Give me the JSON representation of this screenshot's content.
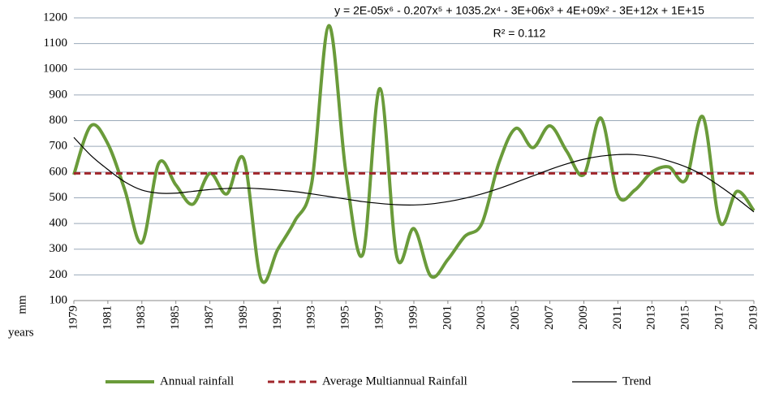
{
  "chart_data": {
    "type": "line",
    "annotations": [
      "y = 2E-05x⁶ - 0.207x⁵ + 1035.2x⁴ - 3E+06x³ + 4E+09x² - 3E+12x + 1E+15",
      "R² = 0.112"
    ],
    "xlabel": "years",
    "ylabel": "mm",
    "x": [
      1979,
      1980,
      1981,
      1982,
      1983,
      1984,
      1985,
      1986,
      1987,
      1988,
      1989,
      1990,
      1991,
      1992,
      1993,
      1994,
      1995,
      1996,
      1997,
      1998,
      1999,
      2000,
      2001,
      2002,
      2003,
      2004,
      2005,
      2006,
      2007,
      2008,
      2009,
      2010,
      2011,
      2012,
      2013,
      2014,
      2015,
      2016,
      2017,
      2018,
      2019
    ],
    "xlim": [
      1979,
      2019
    ],
    "xticks": [
      1979,
      1981,
      1983,
      1985,
      1987,
      1989,
      1991,
      1993,
      1995,
      1997,
      1999,
      2001,
      2003,
      2005,
      2007,
      2009,
      2011,
      2013,
      2015,
      2017,
      2019
    ],
    "ylim": [
      100,
      1200
    ],
    "yticks": [
      100,
      200,
      300,
      400,
      500,
      600,
      700,
      800,
      900,
      1000,
      1100,
      1200
    ],
    "grid": true,
    "legend": "bottom",
    "series": [
      {
        "name": "Annual rainfall",
        "color": "#6a9b3a",
        "style": "smooth",
        "values": [
          590,
          780,
          710,
          530,
          325,
          635,
          550,
          475,
          595,
          515,
          650,
          185,
          300,
          410,
          560,
          1170,
          600,
          280,
          925,
          270,
          380,
          195,
          260,
          350,
          400,
          635,
          770,
          695,
          780,
          680,
          590,
          810,
          510,
          530,
          600,
          620,
          570,
          815,
          405,
          525,
          450
        ]
      },
      {
        "name": "Average Multiannual Rainfall",
        "color": "#a0262b",
        "style": "dashed",
        "values": [
          595,
          595,
          595,
          595,
          595,
          595,
          595,
          595,
          595,
          595,
          595,
          595,
          595,
          595,
          595,
          595,
          595,
          595,
          595,
          595,
          595,
          595,
          595,
          595,
          595,
          595,
          595,
          595,
          595,
          595,
          595,
          595,
          595,
          595,
          595,
          595,
          595,
          595,
          595,
          595,
          595
        ]
      },
      {
        "name": "Trend",
        "color": "#000000",
        "style": "smooth-thin",
        "values": [
          735,
          665,
          610,
          562,
          530,
          518,
          518,
          525,
          532,
          536,
          538,
          535,
          530,
          524,
          515,
          505,
          495,
          485,
          478,
          473,
          472,
          476,
          485,
          498,
          515,
          536,
          560,
          585,
          610,
          632,
          650,
          662,
          668,
          668,
          660,
          643,
          620,
          588,
          545,
          497,
          445
        ]
      }
    ]
  }
}
